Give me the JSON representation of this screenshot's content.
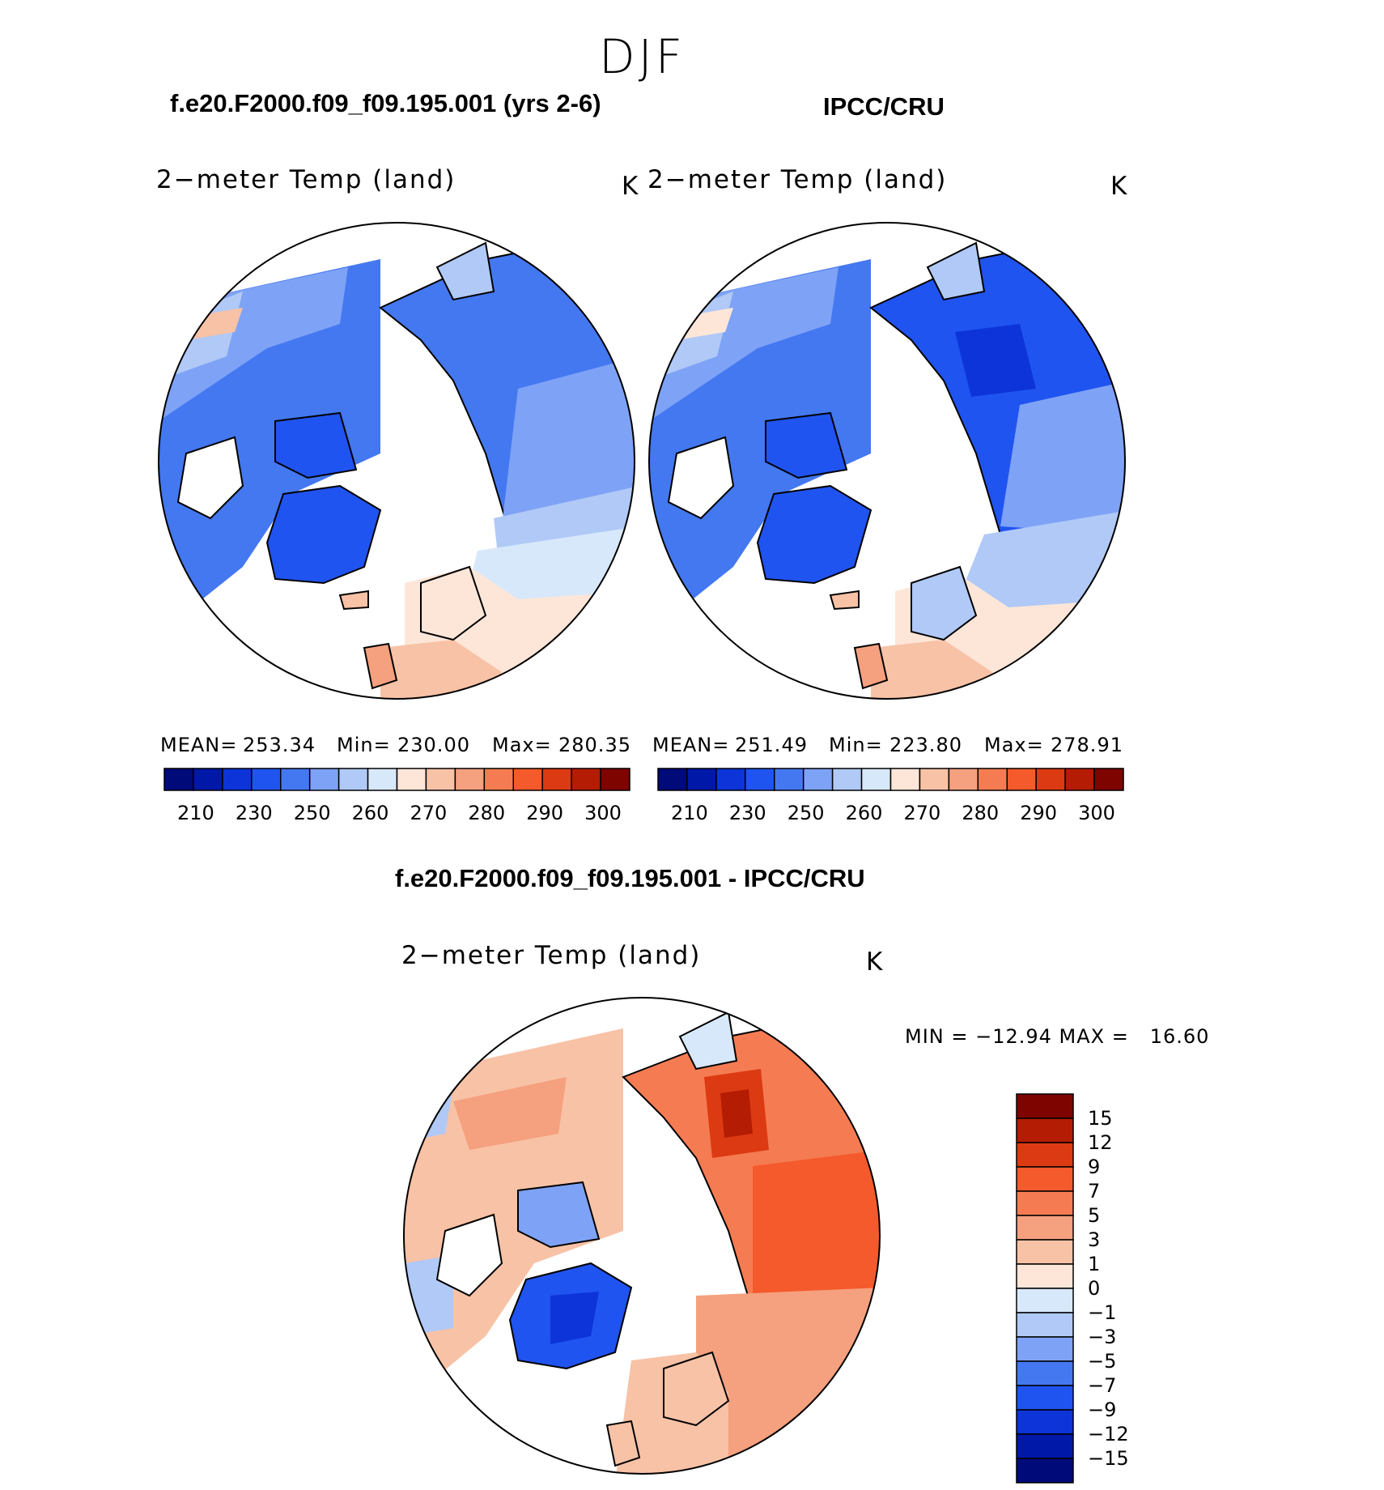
{
  "season": "DJF",
  "colors": {
    "abs_scale": [
      "#000a78",
      "#0018a8",
      "#0c34d8",
      "#2054f0",
      "#4478f0",
      "#7ea2f6",
      "#b0c9f6",
      "#d8e8fb",
      "#fde6d8",
      "#f8c2a6",
      "#f5a07e",
      "#f57c52",
      "#f45a2c",
      "#dc3a12",
      "#b41c04",
      "#7e0400"
    ],
    "diff_scale": [
      "#000a78",
      "#0018a8",
      "#0c34d8",
      "#2054f0",
      "#4478f0",
      "#7ea2f6",
      "#b0c9f6",
      "#d8e8fb",
      "#fde6d8",
      "#f8c2a6",
      "#f5a07e",
      "#f57c52",
      "#f45a2c",
      "#dc3a12",
      "#b41c04",
      "#7e0400"
    ]
  },
  "panel_left": {
    "header": "f.e20.F2000.f09_f09.195.001 (yrs 2-6)",
    "variable": "2−meter Temp (land)",
    "units": "K",
    "stats": {
      "mean_label": "MEAN=",
      "mean": "253.34",
      "min_label": "Min=",
      "min": "230.00",
      "max_label": "Max=",
      "max": "280.35"
    },
    "ticks": [
      "210",
      "230",
      "250",
      "260",
      "270",
      "280",
      "290",
      "300"
    ]
  },
  "panel_right": {
    "header": "IPCC/CRU",
    "variable": "2−meter Temp (land)",
    "units": "K",
    "stats": {
      "mean_label": "MEAN=",
      "mean": "251.49",
      "min_label": "Min=",
      "min": "223.80",
      "max_label": "Max=",
      "max": "278.91"
    },
    "ticks": [
      "210",
      "230",
      "250",
      "260",
      "270",
      "280",
      "290",
      "300"
    ]
  },
  "panel_diff": {
    "header": "f.e20.F2000.f09_f09.195.001 - IPCC/CRU",
    "variable": "2−meter Temp (land)",
    "units": "K",
    "minmax": "MIN = −12.94 MAX =   16.60",
    "ticks": [
      "15",
      "12",
      "9",
      "7",
      "5",
      "3",
      "1",
      "0",
      "−1",
      "−3",
      "−5",
      "−7",
      "−9",
      "−12",
      "−15"
    ]
  }
}
